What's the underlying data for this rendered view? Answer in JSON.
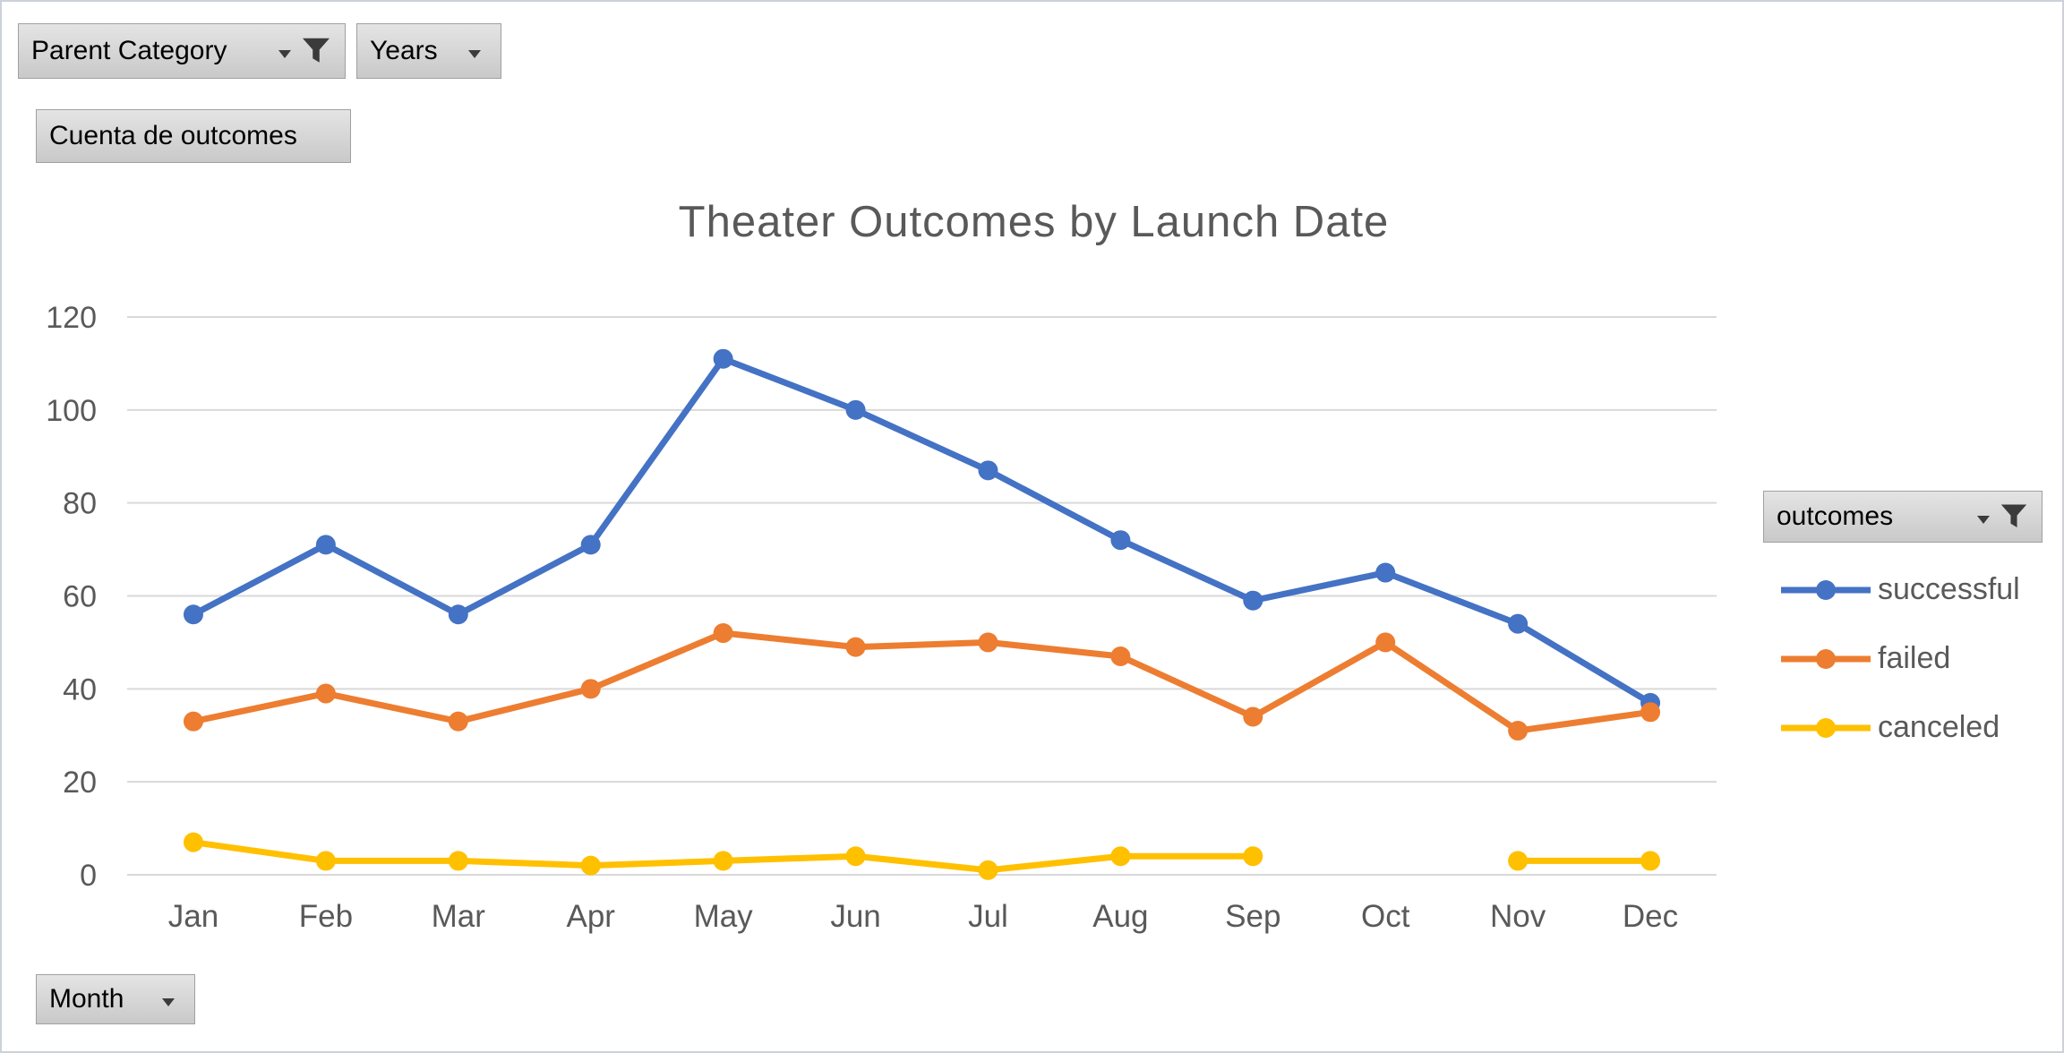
{
  "filters": {
    "parent_category": {
      "label": "Parent Category"
    },
    "years": {
      "label": "Years"
    },
    "values_field": {
      "label": "Cuenta de outcomes"
    },
    "month": {
      "label": "Month"
    },
    "legend_field": {
      "label": "outcomes"
    }
  },
  "chart_data": {
    "type": "line",
    "title": "Theater Outcomes by Launch Date",
    "categories": [
      "Jan",
      "Feb",
      "Mar",
      "Apr",
      "May",
      "Jun",
      "Jul",
      "Aug",
      "Sep",
      "Oct",
      "Nov",
      "Dec"
    ],
    "series": [
      {
        "name": "successful",
        "color": "#4472C4",
        "values": [
          56,
          71,
          56,
          71,
          111,
          100,
          87,
          72,
          59,
          65,
          54,
          37
        ]
      },
      {
        "name": "failed",
        "color": "#ED7D31",
        "values": [
          33,
          39,
          33,
          40,
          52,
          49,
          50,
          47,
          34,
          50,
          31,
          35
        ]
      },
      {
        "name": "canceled",
        "color": "#FFC000",
        "values": [
          7,
          3,
          3,
          2,
          3,
          4,
          1,
          4,
          4,
          null,
          3,
          3
        ]
      }
    ],
    "ylim": [
      0,
      120
    ],
    "ytick_step": 20,
    "grid": true,
    "legend_position": "right",
    "xlabel": "",
    "ylabel": ""
  }
}
